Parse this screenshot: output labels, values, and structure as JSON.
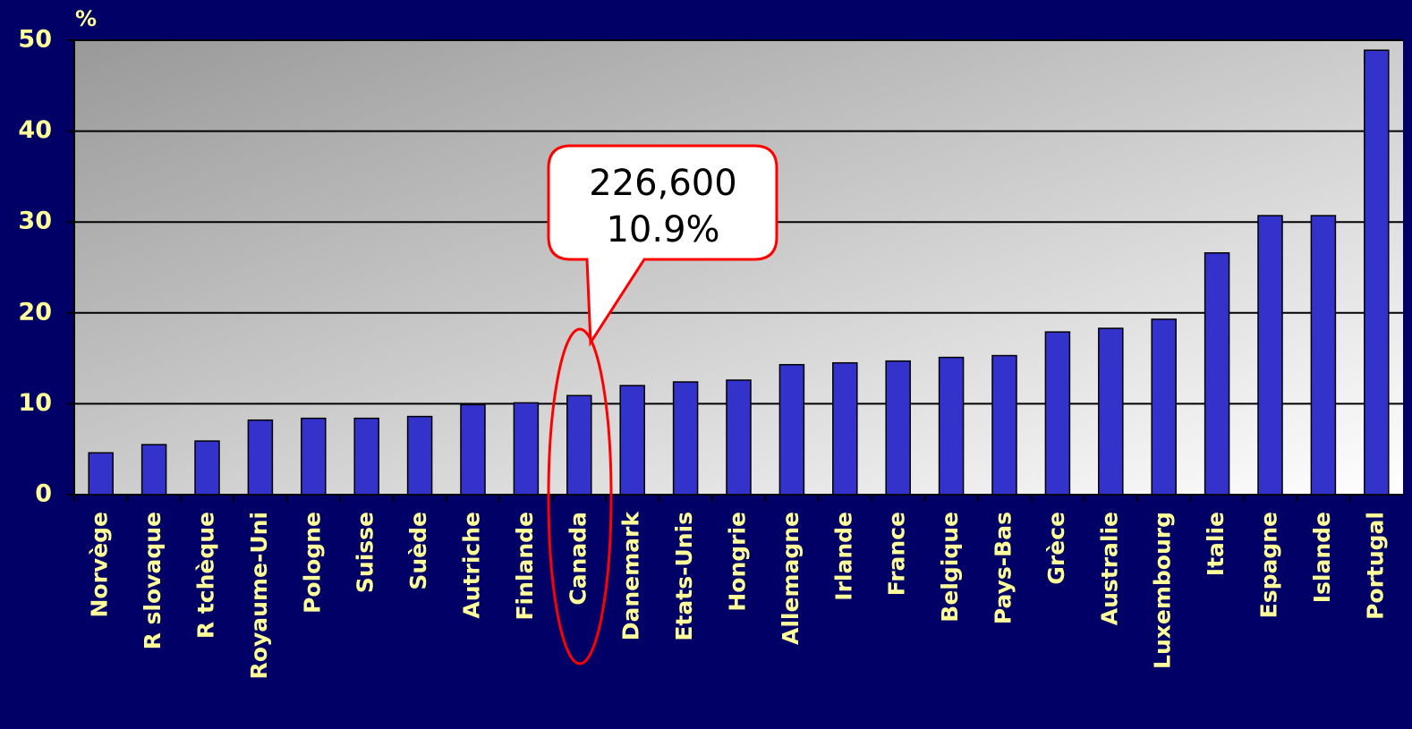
{
  "chart_data": {
    "type": "bar",
    "y_axis_label": "%",
    "categories": [
      "Norvège",
      "R slovaque",
      "R tchèque",
      "Royaume-Uni",
      "Pologne",
      "Suisse",
      "Suède",
      "Autriche",
      "Finlande",
      "Canada",
      "Danemark",
      "Etats-Unis",
      "Hongrie",
      "Allemagne",
      "Irlande",
      "France",
      "Belgique",
      "Pays-Bas",
      "Grèce",
      "Australie",
      "Luxembourg",
      "Italie",
      "Espagne",
      "Islande",
      "Portugal"
    ],
    "values": [
      4.6,
      5.5,
      5.9,
      8.2,
      8.4,
      8.4,
      8.6,
      9.9,
      10.1,
      10.9,
      12.0,
      12.4,
      12.6,
      14.3,
      14.5,
      14.7,
      15.1,
      15.3,
      17.9,
      18.3,
      19.3,
      26.6,
      30.7,
      30.7,
      48.9
    ],
    "color": "#3333cc",
    "ylim": [
      0,
      50
    ],
    "yticks": [
      0,
      10,
      20,
      30,
      40,
      50
    ],
    "grid": true,
    "annotation": [
      "226,600",
      "10.9%"
    ]
  }
}
